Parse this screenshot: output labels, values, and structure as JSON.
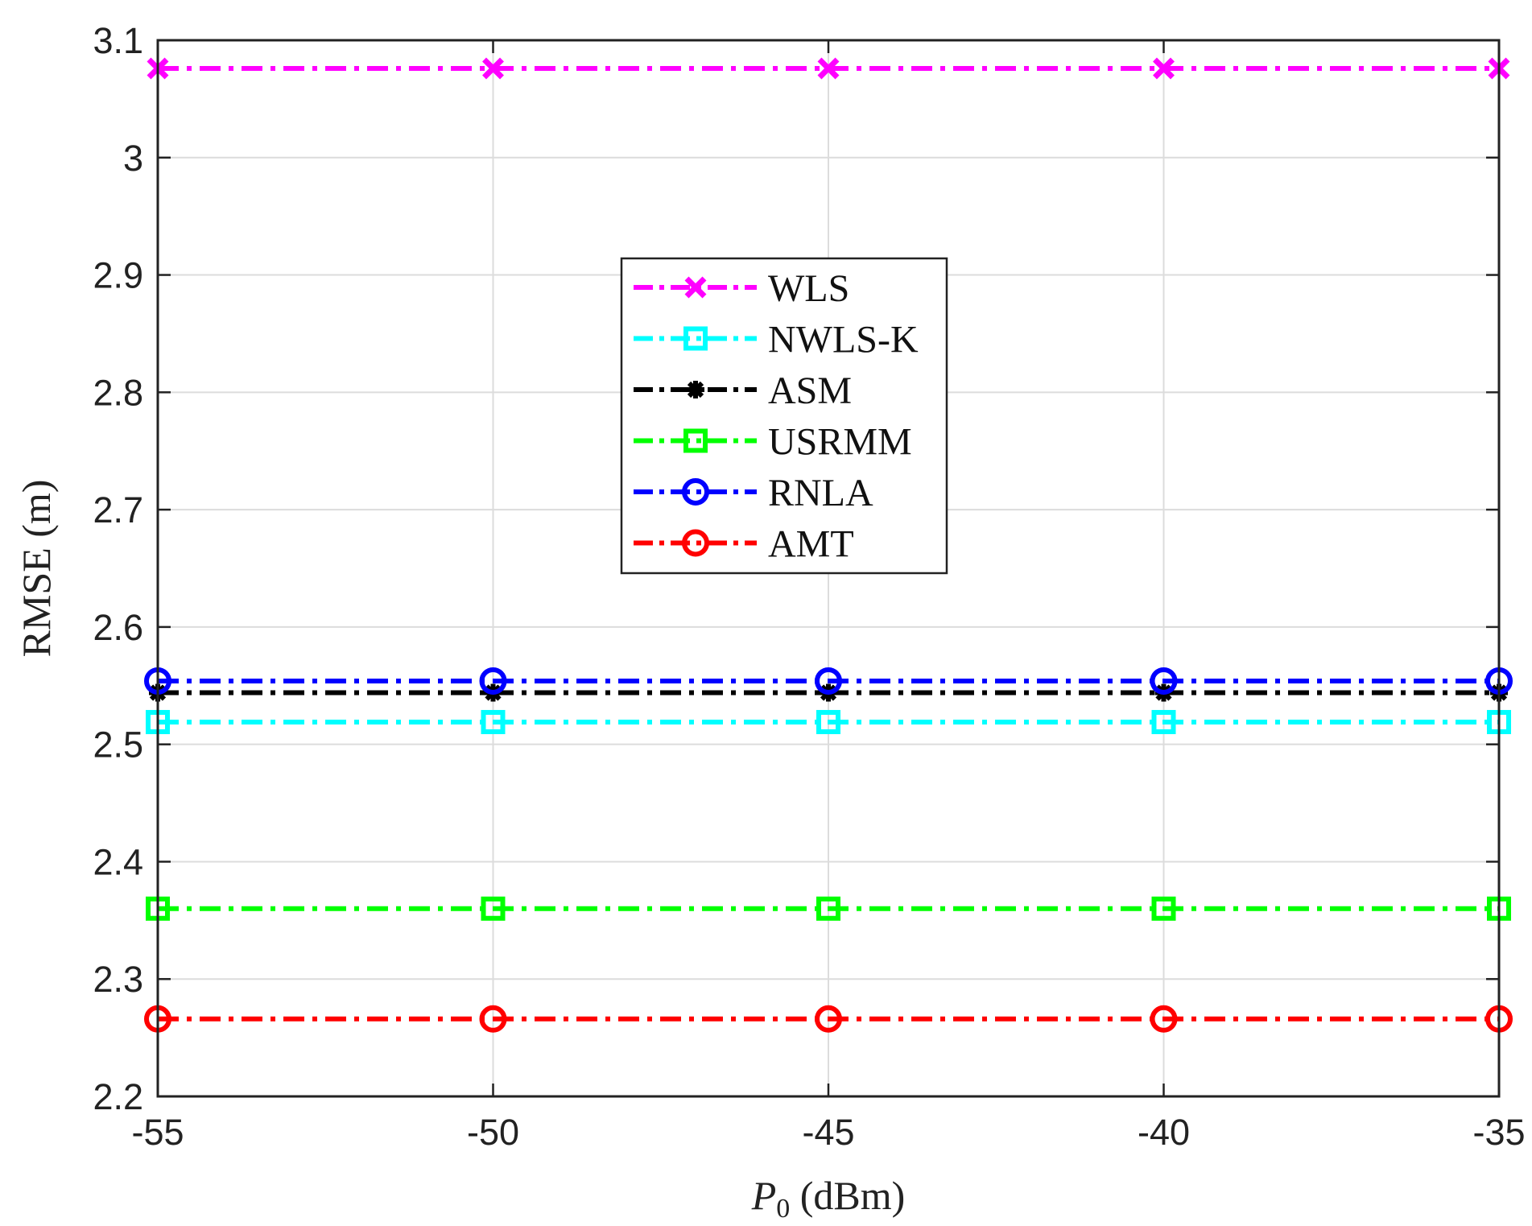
{
  "chart_data": {
    "type": "line",
    "title": "",
    "xlabel_var": "P",
    "xlabel_sub": "0",
    "xlabel_unit": " (dBm)",
    "ylabel": "RMSE (m)",
    "x": [
      -55,
      -50,
      -45,
      -40,
      -35
    ],
    "xticks": [
      -55,
      -50,
      -45,
      -40,
      -35
    ],
    "xtick_labels": [
      "-55",
      "-50",
      "-45",
      "-40",
      "-35"
    ],
    "yticks": [
      2.2,
      2.3,
      2.4,
      2.5,
      2.6,
      2.7,
      2.8,
      2.9,
      3.0,
      3.1
    ],
    "ytick_labels": [
      "2.2",
      "2.3",
      "2.4",
      "2.5",
      "2.6",
      "2.7",
      "2.8",
      "2.9",
      "3",
      "3.1"
    ],
    "xlim": [
      -55,
      -35
    ],
    "ylim": [
      2.2,
      3.1
    ],
    "grid": true,
    "legend_position": "center",
    "series": [
      {
        "name": "WLS",
        "color": "#ff00ff",
        "marker": "x",
        "values": [
          3.076,
          3.076,
          3.076,
          3.076,
          3.076
        ]
      },
      {
        "name": "NWLS-K",
        "color": "#00ffff",
        "marker": "square",
        "values": [
          2.519,
          2.519,
          2.519,
          2.519,
          2.519
        ]
      },
      {
        "name": "ASM",
        "color": "#000000",
        "marker": "asterisk",
        "values": [
          2.544,
          2.544,
          2.544,
          2.544,
          2.544
        ]
      },
      {
        "name": "USRMM",
        "color": "#00ff00",
        "marker": "square",
        "values": [
          2.36,
          2.36,
          2.36,
          2.36,
          2.36
        ]
      },
      {
        "name": "RNLA",
        "color": "#0000ff",
        "marker": "circle",
        "values": [
          2.554,
          2.554,
          2.554,
          2.554,
          2.554
        ]
      },
      {
        "name": "AMT",
        "color": "#ff0000",
        "marker": "circle",
        "values": [
          2.266,
          2.266,
          2.266,
          2.266,
          2.266
        ]
      }
    ]
  }
}
